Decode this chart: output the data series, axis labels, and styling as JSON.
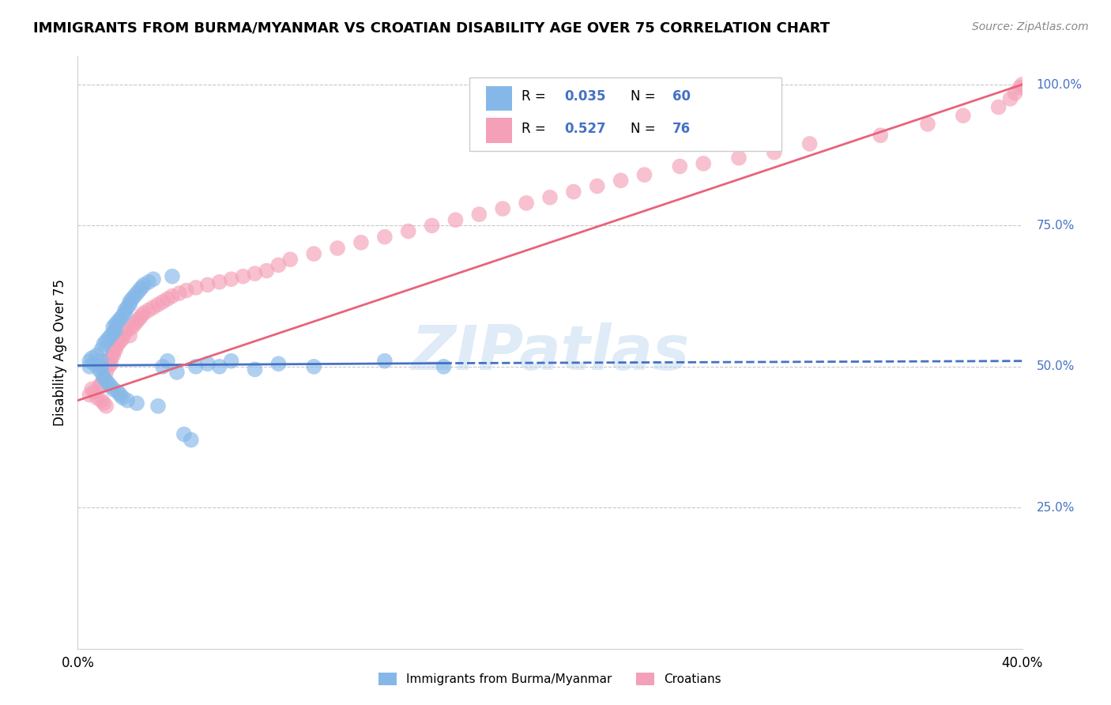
{
  "title": "IMMIGRANTS FROM BURMA/MYANMAR VS CROATIAN DISABILITY AGE OVER 75 CORRELATION CHART",
  "source": "Source: ZipAtlas.com",
  "ylabel": "Disability Age Over 75",
  "legend_blue_label": "Immigrants from Burma/Myanmar",
  "legend_pink_label": "Croatians",
  "blue_r": 0.035,
  "blue_n": 60,
  "pink_r": 0.527,
  "pink_n": 76,
  "xlim": [
    0.0,
    0.4
  ],
  "ylim": [
    0.0,
    1.05
  ],
  "blue_color": "#85B8E8",
  "pink_color": "#F4A0B8",
  "blue_line_color": "#4472C4",
  "pink_line_color": "#E8637A",
  "watermark": "ZIPatlas",
  "background_color": "#ffffff",
  "grid_color": "#c8c8c8",
  "blue_dots_x": [
    0.005,
    0.005,
    0.006,
    0.007,
    0.008,
    0.009,
    0.01,
    0.01,
    0.01,
    0.01,
    0.011,
    0.011,
    0.012,
    0.012,
    0.013,
    0.013,
    0.014,
    0.014,
    0.015,
    0.015,
    0.015,
    0.016,
    0.016,
    0.017,
    0.017,
    0.018,
    0.018,
    0.019,
    0.019,
    0.02,
    0.02,
    0.021,
    0.021,
    0.022,
    0.022,
    0.023,
    0.024,
    0.025,
    0.025,
    0.026,
    0.027,
    0.028,
    0.03,
    0.032,
    0.034,
    0.036,
    0.038,
    0.04,
    0.042,
    0.045,
    0.048,
    0.05,
    0.055,
    0.06,
    0.065,
    0.075,
    0.085,
    0.1,
    0.13,
    0.155
  ],
  "blue_dots_y": [
    0.5,
    0.51,
    0.515,
    0.505,
    0.52,
    0.495,
    0.53,
    0.49,
    0.51,
    0.5,
    0.54,
    0.48,
    0.545,
    0.475,
    0.55,
    0.47,
    0.555,
    0.465,
    0.56,
    0.46,
    0.57,
    0.565,
    0.575,
    0.58,
    0.455,
    0.585,
    0.45,
    0.59,
    0.445,
    0.595,
    0.6,
    0.605,
    0.44,
    0.61,
    0.615,
    0.62,
    0.625,
    0.63,
    0.435,
    0.635,
    0.64,
    0.645,
    0.65,
    0.655,
    0.43,
    0.5,
    0.51,
    0.66,
    0.49,
    0.38,
    0.37,
    0.5,
    0.505,
    0.5,
    0.51,
    0.495,
    0.505,
    0.5,
    0.51,
    0.5
  ],
  "pink_dots_x": [
    0.005,
    0.006,
    0.007,
    0.008,
    0.009,
    0.01,
    0.01,
    0.011,
    0.011,
    0.012,
    0.012,
    0.013,
    0.013,
    0.014,
    0.014,
    0.015,
    0.015,
    0.016,
    0.016,
    0.017,
    0.018,
    0.019,
    0.02,
    0.021,
    0.022,
    0.023,
    0.024,
    0.025,
    0.026,
    0.027,
    0.028,
    0.03,
    0.032,
    0.034,
    0.036,
    0.038,
    0.04,
    0.043,
    0.046,
    0.05,
    0.055,
    0.06,
    0.065,
    0.07,
    0.075,
    0.08,
    0.085,
    0.09,
    0.1,
    0.11,
    0.12,
    0.13,
    0.14,
    0.15,
    0.16,
    0.17,
    0.18,
    0.19,
    0.2,
    0.21,
    0.22,
    0.23,
    0.24,
    0.255,
    0.265,
    0.28,
    0.295,
    0.31,
    0.34,
    0.36,
    0.375,
    0.39,
    0.395,
    0.397,
    0.399,
    0.4
  ],
  "pink_dots_y": [
    0.45,
    0.46,
    0.455,
    0.445,
    0.465,
    0.44,
    0.47,
    0.435,
    0.48,
    0.43,
    0.49,
    0.5,
    0.51,
    0.505,
    0.515,
    0.52,
    0.525,
    0.53,
    0.535,
    0.54,
    0.545,
    0.55,
    0.56,
    0.565,
    0.555,
    0.57,
    0.575,
    0.58,
    0.585,
    0.59,
    0.595,
    0.6,
    0.605,
    0.61,
    0.615,
    0.62,
    0.625,
    0.63,
    0.635,
    0.64,
    0.645,
    0.65,
    0.655,
    0.66,
    0.665,
    0.67,
    0.68,
    0.69,
    0.7,
    0.71,
    0.72,
    0.73,
    0.74,
    0.75,
    0.76,
    0.77,
    0.78,
    0.79,
    0.8,
    0.81,
    0.82,
    0.83,
    0.84,
    0.855,
    0.86,
    0.87,
    0.88,
    0.895,
    0.91,
    0.93,
    0.945,
    0.96,
    0.975,
    0.985,
    0.995,
    1.0
  ],
  "blue_line_start_x": 0.0,
  "blue_line_solid_end_x": 0.155,
  "blue_line_dashed_end_x": 0.4,
  "blue_line_y_at_0": 0.502,
  "blue_line_y_at_155": 0.506,
  "blue_line_y_at_400": 0.51,
  "pink_line_y_at_0": 0.44,
  "pink_line_y_at_400": 1.0
}
